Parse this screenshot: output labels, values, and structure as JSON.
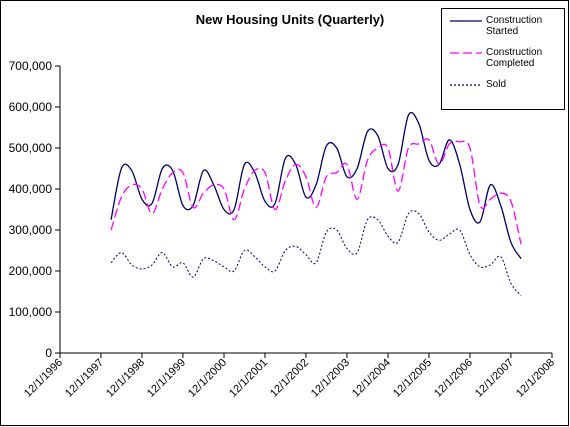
{
  "chart_data": {
    "type": "line",
    "title": "New Housing Units (Quarterly)",
    "x": [
      "3/1/1998",
      "6/1/1998",
      "9/1/1998",
      "12/1/1998",
      "3/1/1999",
      "6/1/1999",
      "9/1/1999",
      "12/1/1999",
      "3/1/2000",
      "6/1/2000",
      "9/1/2000",
      "12/1/2000",
      "3/1/2001",
      "6/1/2001",
      "9/1/2001",
      "12/1/2001",
      "3/1/2002",
      "6/1/2002",
      "9/1/2002",
      "12/1/2002",
      "3/1/2003",
      "6/1/2003",
      "9/1/2003",
      "12/1/2003",
      "3/1/2004",
      "6/1/2004",
      "9/1/2004",
      "12/1/2004",
      "3/1/2005",
      "6/1/2005",
      "9/1/2005",
      "12/1/2005",
      "3/1/2006",
      "6/1/2006",
      "9/1/2006",
      "12/1/2006",
      "3/1/2007",
      "6/1/2007",
      "9/1/2007",
      "12/1/2007",
      "3/1/2008"
    ],
    "series": [
      {
        "name": "Construction Started",
        "color": "#000066",
        "dash": "none",
        "values": [
          325000,
          450000,
          445000,
          375000,
          365000,
          450000,
          445000,
          360000,
          360000,
          445000,
          410000,
          350000,
          350000,
          460000,
          440000,
          370000,
          365000,
          475000,
          460000,
          380000,
          410000,
          505000,
          500000,
          430000,
          450000,
          540000,
          530000,
          450000,
          460000,
          580000,
          560000,
          470000,
          460000,
          520000,
          460000,
          350000,
          320000,
          410000,
          360000,
          270000,
          230000
        ]
      },
      {
        "name": "Construction Completed",
        "color": "#ff00ff",
        "dash": "9 4",
        "values": [
          300000,
          380000,
          410000,
          400000,
          340000,
          400000,
          440000,
          440000,
          355000,
          390000,
          410000,
          400000,
          325000,
          400000,
          445000,
          440000,
          350000,
          420000,
          460000,
          430000,
          355000,
          430000,
          440000,
          460000,
          375000,
          470000,
          500000,
          500000,
          395000,
          500000,
          510000,
          520000,
          460000,
          510000,
          515000,
          500000,
          360000,
          375000,
          390000,
          370000,
          265000
        ]
      },
      {
        "name": "Sold",
        "color": "#000066",
        "dash": "2 2",
        "values": [
          220000,
          245000,
          215000,
          205000,
          215000,
          245000,
          210000,
          220000,
          185000,
          230000,
          225000,
          210000,
          200000,
          250000,
          235000,
          210000,
          200000,
          250000,
          260000,
          240000,
          220000,
          295000,
          300000,
          255000,
          245000,
          325000,
          325000,
          285000,
          270000,
          340000,
          340000,
          295000,
          275000,
          290000,
          300000,
          240000,
          210000,
          215000,
          235000,
          170000,
          140000
        ]
      }
    ],
    "xlim": [
      "12/1/1996",
      "12/1/2008"
    ],
    "xticks": [
      "12/1/1996",
      "12/1/1997",
      "12/1/1998",
      "12/1/1999",
      "12/1/2000",
      "12/1/2001",
      "12/1/2002",
      "12/1/2003",
      "12/1/2004",
      "12/1/2005",
      "12/1/2006",
      "12/1/2007",
      "12/1/2008"
    ],
    "ylim": [
      0,
      700000
    ],
    "yticks": [
      0,
      {
        "value": 100000,
        "label": "100,000"
      },
      {
        "value": 200000,
        "label": "200,000"
      },
      {
        "value": 300000,
        "label": "300,000"
      },
      {
        "value": 400000,
        "label": "400,000"
      },
      {
        "value": 500000,
        "label": "500,000"
      },
      {
        "value": 600000,
        "label": "600,000"
      },
      {
        "value": 700000,
        "label": "700,000"
      }
    ],
    "grid": false,
    "legend": "top-right"
  }
}
